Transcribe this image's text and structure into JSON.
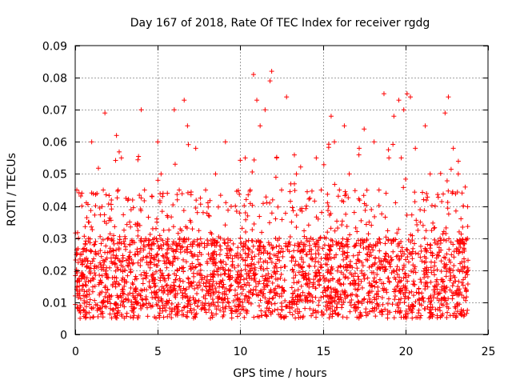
{
  "chart_data": {
    "type": "scatter",
    "title": "Day 167 of 2018, Rate Of TEC Index for receiver rgdg",
    "xlabel": "GPS time / hours",
    "ylabel": "ROTI / TECUs",
    "xlim": [
      0,
      25
    ],
    "ylim": [
      0,
      0.09
    ],
    "x_ticks": [
      0,
      5,
      10,
      15,
      20,
      25
    ],
    "y_ticks": [
      0,
      0.01,
      0.02,
      0.03,
      0.04,
      0.05,
      0.06,
      0.07,
      0.08,
      0.09
    ],
    "x_tick_labels": [
      "0",
      "5",
      "10",
      "15",
      "20",
      "25"
    ],
    "y_tick_labels": [
      "0",
      "0.01",
      "0.02",
      "0.03",
      "0.04",
      "0.05",
      "0.06",
      "0.07",
      "0.08",
      "0.09"
    ],
    "grid": true,
    "marker": "+",
    "marker_color": "#ff0000",
    "series": [
      {
        "name": "ROTI",
        "x": [
          0.0,
          0.1,
          0.2,
          0.3,
          0.4,
          0.5,
          0.8,
          1.0,
          1.2,
          1.4,
          1.6,
          1.7,
          1.8,
          2.0,
          2.2,
          2.5,
          2.6,
          2.8,
          3.0,
          3.3,
          3.5,
          3.8,
          4.0,
          4.2,
          4.5,
          4.8,
          5.0,
          5.2,
          5.5,
          5.8,
          6.0,
          6.3,
          6.6,
          6.8,
          7.0,
          7.3,
          7.6,
          7.9,
          8.2,
          8.5,
          8.8,
          9.1,
          9.4,
          9.7,
          10.0,
          10.3,
          10.6,
          10.8,
          11.0,
          11.2,
          11.5,
          11.8,
          11.9,
          12.2,
          12.5,
          12.8,
          13.1,
          13.4,
          13.7,
          14.0,
          14.3,
          14.6,
          14.9,
          15.2,
          15.5,
          15.7,
          16.0,
          16.3,
          16.6,
          16.9,
          17.2,
          17.5,
          17.8,
          18.1,
          18.4,
          18.7,
          19.0,
          19.3,
          19.6,
          19.9,
          20.1,
          20.3,
          20.6,
          20.9,
          21.2,
          21.5,
          21.8,
          22.1,
          22.4,
          22.6,
          22.9,
          23.2,
          23.5,
          23.8
        ],
        "y": [
          0.012,
          0.045,
          0.03,
          0.025,
          0.04,
          0.018,
          0.035,
          0.06,
          0.015,
          0.008,
          0.01,
          0.045,
          0.069,
          0.03,
          0.012,
          0.062,
          0.045,
          0.055,
          0.02,
          0.035,
          0.012,
          0.025,
          0.07,
          0.045,
          0.015,
          0.03,
          0.06,
          0.05,
          0.025,
          0.015,
          0.07,
          0.045,
          0.073,
          0.065,
          0.035,
          0.058,
          0.02,
          0.045,
          0.012,
          0.05,
          0.03,
          0.06,
          0.015,
          0.04,
          0.03,
          0.055,
          0.045,
          0.081,
          0.073,
          0.065,
          0.07,
          0.079,
          0.082,
          0.055,
          0.045,
          0.074,
          0.035,
          0.05,
          0.015,
          0.04,
          0.025,
          0.055,
          0.045,
          0.03,
          0.068,
          0.06,
          0.045,
          0.065,
          0.05,
          0.038,
          0.058,
          0.064,
          0.035,
          0.06,
          0.045,
          0.075,
          0.055,
          0.068,
          0.073,
          0.07,
          0.075,
          0.074,
          0.058,
          0.035,
          0.065,
          0.05,
          0.04,
          0.03,
          0.069,
          0.074,
          0.058,
          0.05,
          0.04,
          0.02
        ]
      }
    ],
    "dense_band": {
      "description_values": "baseline ROTI level across the day (data units)",
      "typical_min": 0.005,
      "typical_max": 0.03
    }
  }
}
